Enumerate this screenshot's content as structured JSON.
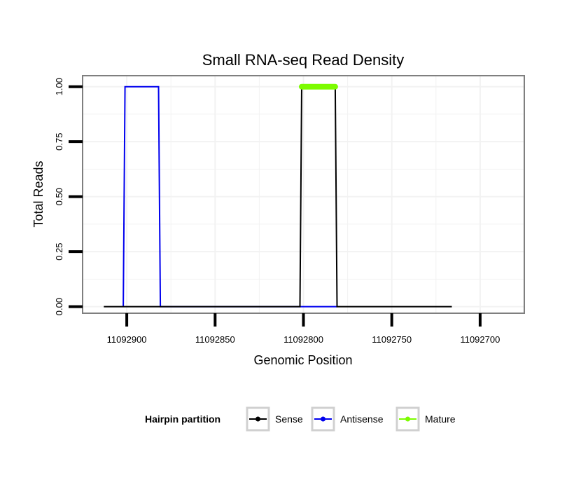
{
  "chart_data": {
    "type": "line",
    "title": "Small RNA-seq Read Density",
    "xlabel": "Genomic Position",
    "ylabel": "Total Reads",
    "x_reversed": true,
    "xlim": [
      11092925,
      11092675
    ],
    "ylim": [
      -0.03,
      1.05
    ],
    "x_ticks": [
      11092900,
      11092850,
      11092800,
      11092750,
      11092700
    ],
    "x_tick_labels": [
      "11092900",
      "11092850",
      "11092800",
      "11092750",
      "11092700"
    ],
    "y_ticks": [
      0,
      0.25,
      0.5,
      0.75,
      1.0
    ],
    "y_tick_labels": [
      "0.00",
      "0.25",
      "0.50",
      "0.75",
      "1.00"
    ],
    "grid": true,
    "series": [
      {
        "name": "Antisense",
        "color": "#0000ee",
        "x": [
          11092902,
          11092901,
          11092882,
          11092881,
          11092802,
          11092781
        ],
        "y": [
          0,
          1,
          1,
          0,
          0,
          0
        ]
      },
      {
        "name": "Sense",
        "color": "#000000",
        "x": [
          11092913,
          11092802,
          11092801,
          11092782,
          11092781,
          11092716
        ],
        "y": [
          0,
          0,
          1,
          1,
          0,
          0
        ]
      },
      {
        "name": "Mature",
        "color": "#7cfc00",
        "x": [
          11092801,
          11092782
        ],
        "y": [
          1,
          1
        ]
      }
    ],
    "legend": {
      "title": "Hairpin partition",
      "position": "bottom",
      "entries": [
        {
          "label": "Sense",
          "color": "#000000"
        },
        {
          "label": "Antisense",
          "color": "#0000ee"
        },
        {
          "label": "Mature",
          "color": "#7cfc00"
        }
      ]
    }
  }
}
